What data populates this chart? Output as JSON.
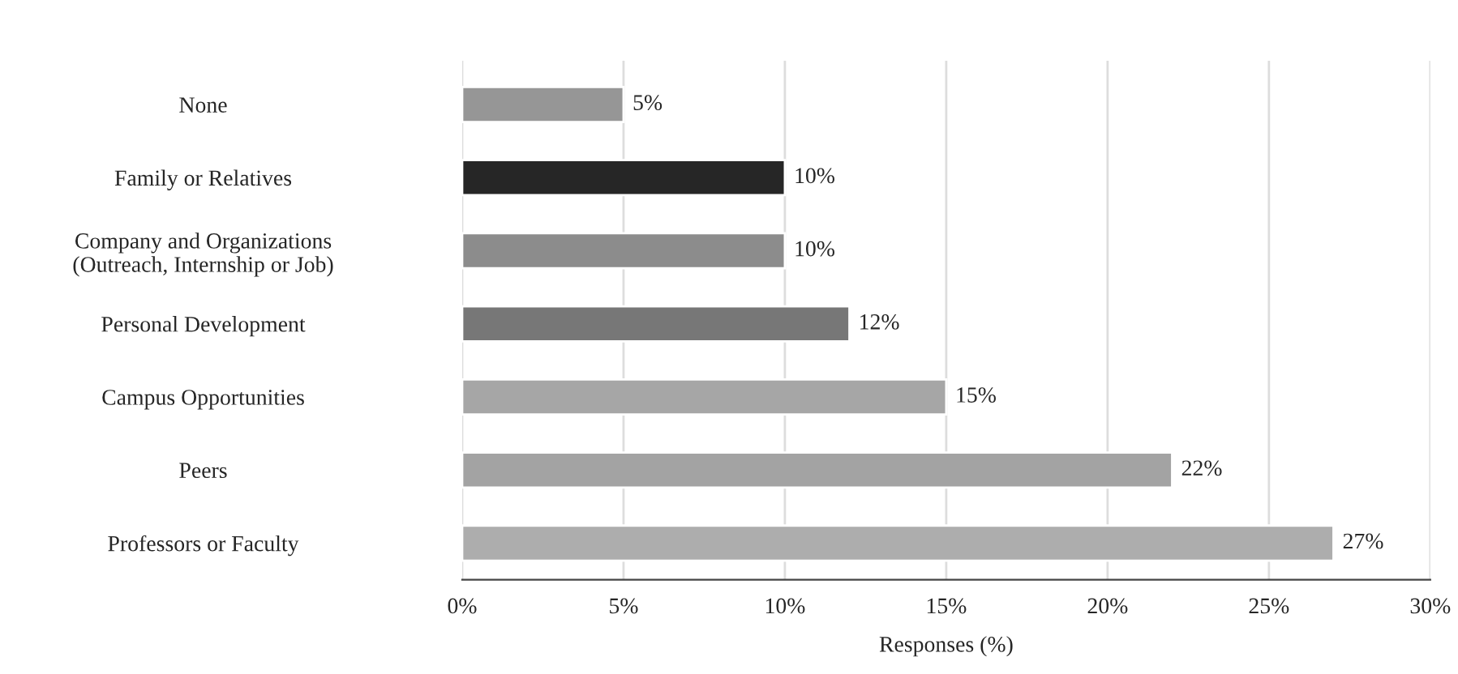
{
  "chart_data": {
    "type": "bar",
    "orientation": "horizontal",
    "xlabel": "Responses (%)",
    "categories": [
      "None",
      "Family or Relatives",
      "Company and Organizations\n(Outreach, Internship or Job)",
      "Personal Development",
      "Campus Opportunities",
      "Peers",
      "Professors or Faculty"
    ],
    "values": [
      5,
      10,
      10,
      12,
      15,
      22,
      27
    ],
    "colors": [
      "#969696",
      "#262626",
      "#8c8c8c",
      "#777777",
      "#a6a6a6",
      "#a3a3a3",
      "#adadad"
    ],
    "value_labels": [
      "5%",
      "10%",
      "10%",
      "12%",
      "15%",
      "22%",
      "27%"
    ],
    "xlim": [
      0,
      30
    ],
    "xticks": [
      {
        "value": 0,
        "label": "0%"
      },
      {
        "value": 5,
        "label": "5%"
      },
      {
        "value": 10,
        "label": "10%"
      },
      {
        "value": 15,
        "label": "15%"
      },
      {
        "value": 20,
        "label": "20%"
      },
      {
        "value": 25,
        "label": "25%"
      },
      {
        "value": 30,
        "label": "30%"
      }
    ],
    "grid": "x"
  }
}
